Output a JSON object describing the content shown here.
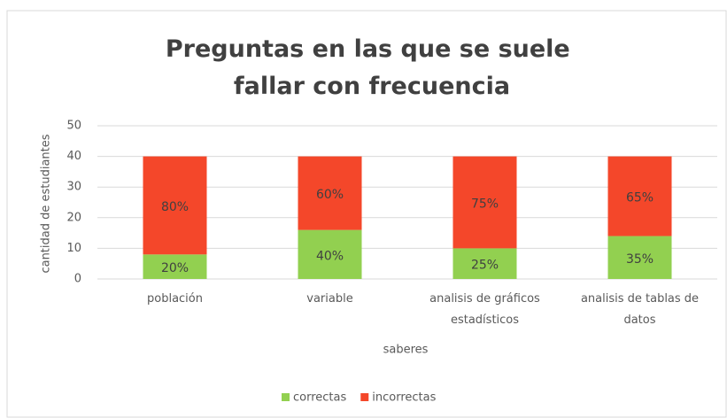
{
  "chart_data": {
    "type": "stacked_bar",
    "title": "Preguntas en las que se suele fallar con frecuencia",
    "x_label": "saberes",
    "y_label": "cantidad de estudiantes",
    "categories": [
      "población",
      "variable",
      "analisis de gráficos estadísticos",
      "analisis de tablas de datos"
    ],
    "series": [
      {
        "name": "correctas",
        "color": "#92d050",
        "values": [
          8,
          16,
          10,
          14
        ],
        "value_labels": [
          "20%",
          "40%",
          "25%",
          "35%"
        ]
      },
      {
        "name": "incorrectas",
        "color": "#f4472a",
        "values": [
          32,
          24,
          30,
          26
        ],
        "value_labels": [
          "80%",
          "60%",
          "75%",
          "65%"
        ]
      }
    ],
    "ylim": [
      0,
      50
    ],
    "yticks": [
      0,
      10,
      20,
      30,
      40,
      50
    ],
    "grid": true,
    "legend": "bottom"
  }
}
